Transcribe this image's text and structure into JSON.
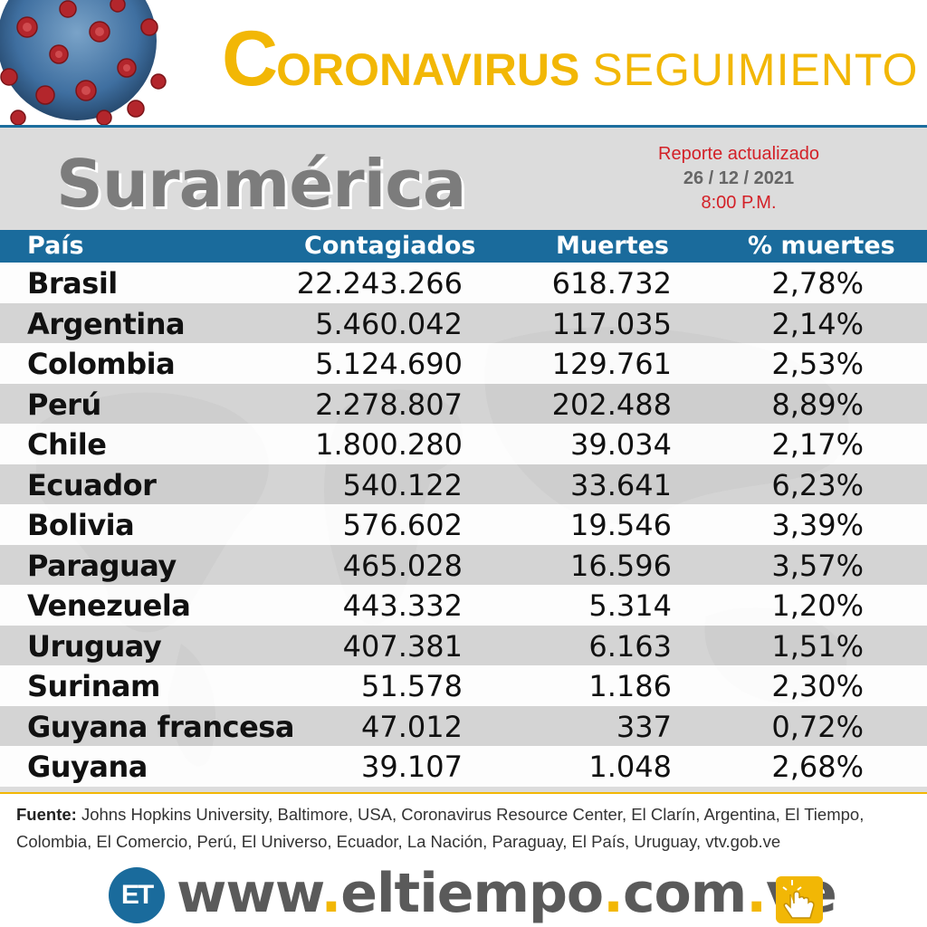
{
  "header": {
    "title_first": "C",
    "title_rest": "ORONAVIRUS",
    "title_second": "SEGUIMIENTO"
  },
  "region": "Suramérica",
  "report": {
    "line1": "Reporte actualizado",
    "date": "26 / 12 / 2021",
    "time": "8:00 P.M."
  },
  "table": {
    "headers": [
      "País",
      "Contagiados",
      "Muertes",
      "% muertes"
    ],
    "rows": [
      {
        "pais": "Brasil",
        "contagiados": "22.243.266",
        "muertes": "618.732",
        "pct": "2,78%"
      },
      {
        "pais": "Argentina",
        "contagiados": "5.460.042",
        "muertes": "117.035",
        "pct": "2,14%"
      },
      {
        "pais": "Colombia",
        "contagiados": "5.124.690",
        "muertes": "129.761",
        "pct": "2,53%"
      },
      {
        "pais": "Perú",
        "contagiados": "2.278.807",
        "muertes": "202.488",
        "pct": "8,89%"
      },
      {
        "pais": "Chile",
        "contagiados": "1.800.280",
        "muertes": "39.034",
        "pct": "2,17%"
      },
      {
        "pais": "Ecuador",
        "contagiados": "540.122",
        "muertes": "33.641",
        "pct": "6,23%"
      },
      {
        "pais": "Bolivia",
        "contagiados": "576.602",
        "muertes": "19.546",
        "pct": "3,39%"
      },
      {
        "pais": "Paraguay",
        "contagiados": "465.028",
        "muertes": "16.596",
        "pct": "3,57%"
      },
      {
        "pais": "Venezuela",
        "contagiados": "443.332",
        "muertes": "5.314",
        "pct": "1,20%"
      },
      {
        "pais": "Uruguay",
        "contagiados": "407.381",
        "muertes": "6.163",
        "pct": "1,51%"
      },
      {
        "pais": "Surinam",
        "contagiados": "51.578",
        "muertes": "1.186",
        "pct": "2,30%"
      },
      {
        "pais": "Guyana francesa",
        "contagiados": "47.012",
        "muertes": "337",
        "pct": "0,72%"
      },
      {
        "pais": "Guyana",
        "contagiados": "39.107",
        "muertes": "1.048",
        "pct": "2,68%"
      }
    ]
  },
  "source": {
    "label": "Fuente:",
    "text": " Johns Hopkins University, Baltimore, USA, Coronavirus Resource Center,  El Clarín, Argentina, El Tiempo, Colombia, El Comercio, Perú, El Universo, Ecuador, La Nación, Paraguay, El País, Uruguay, vtv.gob.ve"
  },
  "footer": {
    "logo": "ET",
    "url_parts": [
      "www",
      ".",
      "eltiempo",
      ".",
      "com",
      ".",
      "ve"
    ]
  },
  "icons": {
    "virus": "coronavirus-illustration",
    "world": "world-map-watermark",
    "click": "hand-click-icon"
  },
  "colors": {
    "accent_yellow": "#f2b705",
    "header_blue": "#1a6b9c",
    "red": "#d32027",
    "region_gray": "#7c7c7c"
  }
}
